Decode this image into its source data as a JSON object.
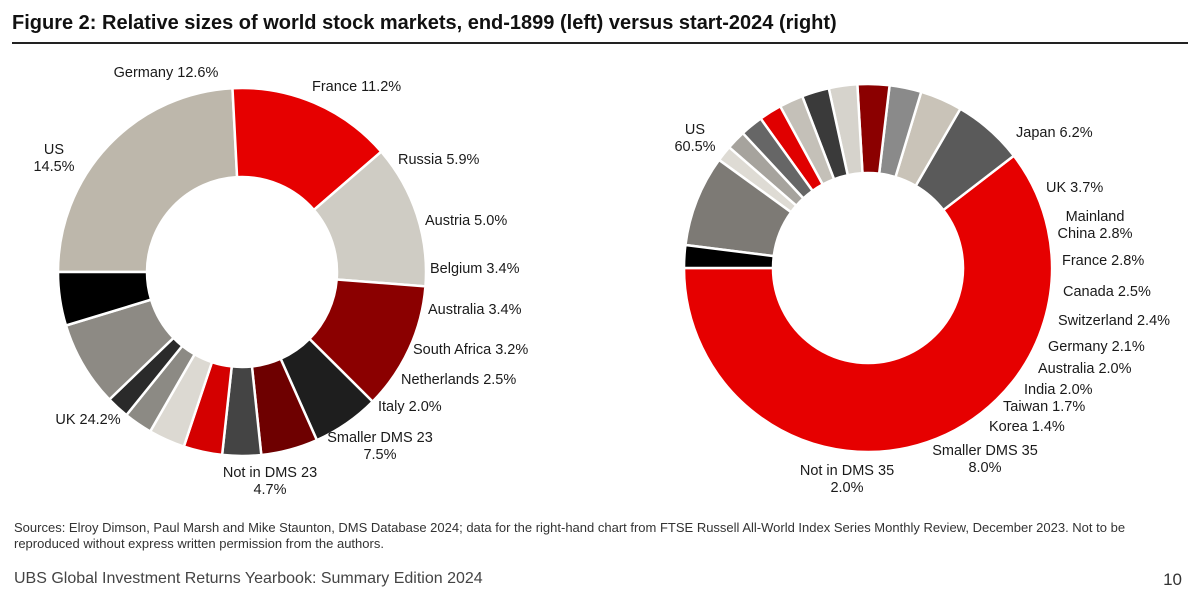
{
  "figure_title": "Figure 2: Relative sizes of world stock markets, end-1899 (left) versus start-2024 (right)",
  "sources": "Sources: Elroy Dimson, Paul Marsh and Mike Staunton, DMS Database 2024; data for the right-hand chart from FTSE Russell All-World Index Series Monthly Review, December 2023. Not to be reproduced without express written permission from the authors.",
  "footer": {
    "publication": "UBS Global Investment Returns Yearbook: Summary Edition 2024",
    "page_number": "10"
  },
  "chart_data": [
    {
      "type": "pie",
      "donut": true,
      "title": "end-1899",
      "slices": [
        {
          "name": "UK",
          "value": 24.2,
          "label": [
            "UK 24.2%"
          ],
          "color": "#bdb7ab"
        },
        {
          "name": "US",
          "value": 14.5,
          "label": [
            "US",
            "14.5%"
          ],
          "color": "#e60000"
        },
        {
          "name": "Germany",
          "value": 12.6,
          "label": [
            "Germany 12.6%"
          ],
          "color": "#cfccc4"
        },
        {
          "name": "France",
          "value": 11.2,
          "label": [
            "France 11.2%"
          ],
          "color": "#8b0000"
        },
        {
          "name": "Russia",
          "value": 5.9,
          "label": [
            "Russia 5.9%"
          ],
          "color": "#1e1e1e"
        },
        {
          "name": "Austria",
          "value": 5.0,
          "label": [
            "Austria 5.0%"
          ],
          "color": "#6e0000"
        },
        {
          "name": "Belgium",
          "value": 3.4,
          "label": [
            "Belgium 3.4%"
          ],
          "color": "#444444"
        },
        {
          "name": "Australia",
          "value": 3.4,
          "label": [
            "Australia 3.4%"
          ],
          "color": "#d40000"
        },
        {
          "name": "South Africa",
          "value": 3.2,
          "label": [
            "South Africa 3.2%"
          ],
          "color": "#dcd9d2"
        },
        {
          "name": "Netherlands",
          "value": 2.5,
          "label": [
            "Netherlands 2.5%"
          ],
          "color": "#8c8a84"
        },
        {
          "name": "Italy",
          "value": 2.0,
          "label": [
            "Italy 2.0%"
          ],
          "color": "#2a2a2a"
        },
        {
          "name": "Smaller DMS 23",
          "value": 7.5,
          "label": [
            "Smaller DMS 23",
            "7.5%"
          ],
          "color": "#8d8a84"
        },
        {
          "name": "Not in DMS 23",
          "value": 4.7,
          "label": [
            "Not in DMS 23",
            "4.7%"
          ],
          "color": "#000000"
        }
      ]
    },
    {
      "type": "pie",
      "donut": true,
      "title": "start-2024",
      "slices": [
        {
          "name": "US",
          "value": 60.5,
          "label": [
            "US",
            "60.5%"
          ],
          "color": "#e60000"
        },
        {
          "name": "Japan",
          "value": 6.2,
          "label": [
            "Japan 6.2%"
          ],
          "color": "#5a5a5a"
        },
        {
          "name": "UK",
          "value": 3.7,
          "label": [
            "UK 3.7%"
          ],
          "color": "#c9c3b8"
        },
        {
          "name": "Mainland China",
          "value": 2.8,
          "label": [
            "Mainland",
            "China 2.8%"
          ],
          "color": "#8a8a8a"
        },
        {
          "name": "France",
          "value": 2.8,
          "label": [
            "France 2.8%"
          ],
          "color": "#8b0000"
        },
        {
          "name": "Canada",
          "value": 2.5,
          "label": [
            "Canada 2.5%"
          ],
          "color": "#d6d3cc"
        },
        {
          "name": "Switzerland",
          "value": 2.4,
          "label": [
            "Switzerland 2.4%"
          ],
          "color": "#3a3a3a"
        },
        {
          "name": "Germany",
          "value": 2.1,
          "label": [
            "Germany 2.1%"
          ],
          "color": "#c4c0b8"
        },
        {
          "name": "Australia",
          "value": 2.0,
          "label": [
            "Australia 2.0%"
          ],
          "color": "#e00000"
        },
        {
          "name": "India",
          "value": 2.0,
          "label": [
            "India 2.0%"
          ],
          "color": "#666666"
        },
        {
          "name": "Taiwan",
          "value": 1.7,
          "label": [
            "Taiwan 1.7%"
          ],
          "color": "#a6a39d"
        },
        {
          "name": "Korea",
          "value": 1.4,
          "label": [
            "Korea 1.4%"
          ],
          "color": "#dedbd4"
        },
        {
          "name": "Smaller DMS 35",
          "value": 8.0,
          "label": [
            "Smaller DMS 35",
            "8.0%"
          ],
          "color": "#7d7a75"
        },
        {
          "name": "Not in DMS 35",
          "value": 2.0,
          "label": [
            "Not in DMS 35",
            "2.0%"
          ],
          "color": "#000000"
        }
      ]
    }
  ]
}
